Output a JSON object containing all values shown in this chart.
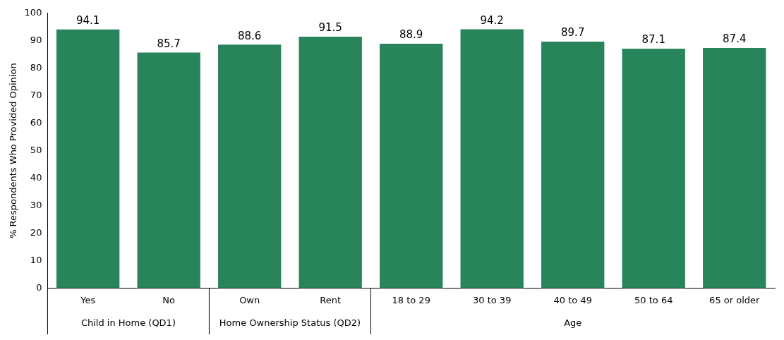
{
  "chart_data": {
    "type": "bar",
    "ylabel": "% Respondents Who Provided Opinion",
    "categories": [
      "Yes",
      "No",
      "Own",
      "Rent",
      "18 to 29",
      "30 to 39",
      "40 to 49",
      "50 to 64",
      "65 or older"
    ],
    "values": [
      94.1,
      85.7,
      88.6,
      91.5,
      88.9,
      94.2,
      89.7,
      87.1,
      87.4
    ],
    "color": "#28845a",
    "ylim": [
      0,
      100
    ],
    "yticks": [
      0,
      10,
      20,
      30,
      40,
      50,
      60,
      70,
      80,
      90,
      100
    ],
    "grid": false,
    "legend": false,
    "data_labels": true,
    "annotations": [
      "Child in Home (QD1)",
      "Home Ownership Status (QD2)",
      "Age"
    ]
  }
}
